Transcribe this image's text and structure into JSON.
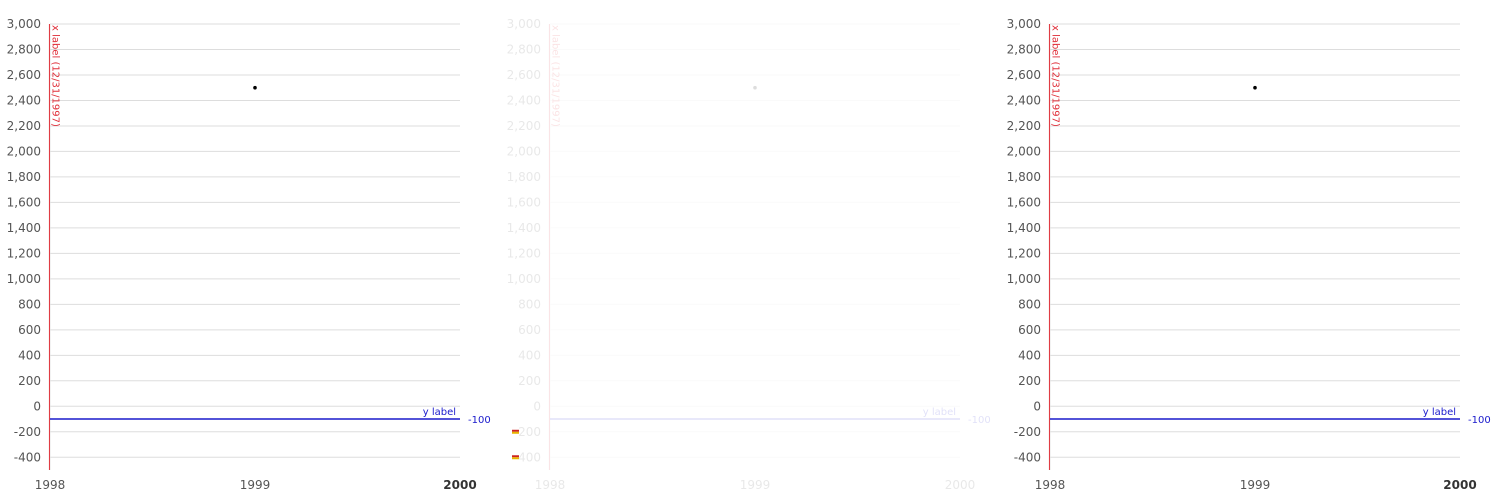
{
  "chart_data": [
    {
      "panel": "left",
      "faded": false,
      "type": "scatter",
      "title": "",
      "xlabel": "",
      "ylabel": "",
      "x_ticks": [
        "1998",
        "1999",
        "2000"
      ],
      "x_tick_strong": [
        false,
        false,
        true
      ],
      "xlim": [
        "1998-01-01",
        "2000-01-01"
      ],
      "y_ticks": [
        3000,
        2800,
        2600,
        2400,
        2200,
        2000,
        1800,
        1600,
        1400,
        1200,
        1000,
        800,
        600,
        400,
        200,
        0,
        -200,
        -400
      ],
      "y_tick_labels": [
        "3,000",
        "2,800",
        "2,600",
        "2,400",
        "2,200",
        "2,000",
        "1,800",
        "1,600",
        "1,400",
        "1,200",
        "1,000",
        "800",
        "600",
        "400",
        "200",
        "0",
        "-200",
        "-400"
      ],
      "ylim": [
        -500,
        3000
      ],
      "grid": true,
      "series": [
        {
          "points": [
            {
              "x": "1999-01-01",
              "y": 2500
            }
          ],
          "color": "#000000"
        }
      ],
      "annotations": [
        {
          "kind": "vertical-line",
          "x": "1997-12-31",
          "label": "x label (12/31/1997)",
          "color": "#e0303a"
        },
        {
          "kind": "horizontal-line",
          "y": -100,
          "label": "y label",
          "value_label": "-100",
          "color": "#1a1acc"
        }
      ]
    },
    {
      "panel": "middle",
      "faded": true,
      "type": "scatter",
      "title": "",
      "xlabel": "",
      "ylabel": "",
      "x_ticks": [
        "1998",
        "1999",
        "2000"
      ],
      "x_tick_strong": [
        false,
        false,
        false
      ],
      "xlim": [
        "1998-01-01",
        "2000-01-01"
      ],
      "y_ticks": [
        3000,
        2800,
        2600,
        2400,
        2200,
        2000,
        1800,
        1600,
        1400,
        1200,
        1000,
        800,
        600,
        400,
        200,
        0,
        -200,
        -400
      ],
      "y_tick_labels": [
        "3,000",
        "2,800",
        "2,600",
        "2,400",
        "2,200",
        "2,000",
        "1,800",
        "1,600",
        "1,400",
        "1,200",
        "1,000",
        "800",
        "600",
        "400",
        "200",
        "0",
        "-200",
        "-400"
      ],
      "ylim": [
        -500,
        3000
      ],
      "grid": true,
      "series": [
        {
          "points": [
            {
              "x": "1999-01-01",
              "y": 2500
            }
          ],
          "color": "#000000"
        }
      ],
      "annotations": [
        {
          "kind": "vertical-line",
          "x": "1997-12-31",
          "label": "x label (12/31/1997)",
          "color": "#e0303a"
        },
        {
          "kind": "horizontal-line",
          "y": -100,
          "label": "y label",
          "value_label": "-100",
          "color": "#1a1acc"
        }
      ]
    },
    {
      "panel": "right",
      "faded": false,
      "type": "scatter",
      "title": "",
      "xlabel": "",
      "ylabel": "",
      "x_ticks": [
        "1998",
        "1999",
        "2000"
      ],
      "x_tick_strong": [
        false,
        false,
        true
      ],
      "xlim": [
        "1998-01-01",
        "2000-01-01"
      ],
      "y_ticks": [
        3000,
        2800,
        2600,
        2400,
        2200,
        2000,
        1800,
        1600,
        1400,
        1200,
        1000,
        800,
        600,
        400,
        200,
        0,
        -200,
        -400
      ],
      "y_tick_labels": [
        "3,000",
        "2,800",
        "2,600",
        "2,400",
        "2,200",
        "2,000",
        "1,800",
        "1,600",
        "1,400",
        "1,200",
        "1,000",
        "800",
        "600",
        "400",
        "200",
        "0",
        "-200",
        "-400"
      ],
      "ylim": [
        -500,
        3000
      ],
      "grid": true,
      "series": [
        {
          "points": [
            {
              "x": "1999-01-01",
              "y": 2500
            }
          ],
          "color": "#000000"
        }
      ],
      "annotations": [
        {
          "kind": "vertical-line",
          "x": "1997-12-31",
          "label": "x label (12/31/1997)",
          "color": "#e0303a"
        },
        {
          "kind": "horizontal-line",
          "y": -100,
          "label": "y label",
          "value_label": "-100",
          "color": "#1a1acc"
        }
      ]
    }
  ],
  "colors": {
    "grid": "#dddddd",
    "tick_text": "#555555",
    "accent_red": "#e0303a",
    "accent_blue": "#1a1acc",
    "glyph_red": "#cc2222",
    "glyph_yellow": "#e8b400"
  }
}
